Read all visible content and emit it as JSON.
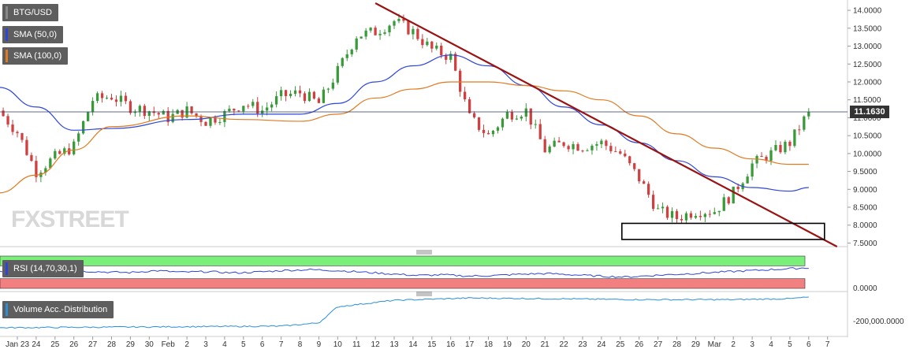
{
  "header": {
    "symbol_label": "BTG/USD",
    "sma50_label": "SMA (50,0)",
    "sma100_label": "SMA (100,0)",
    "rsi_label": "RSI (14,70,30,1)",
    "volume_label": "Volume Acc.-Distribution",
    "watermark": "FXSTREET",
    "last_price": "11.1630"
  },
  "colors": {
    "up": "#3a9a3a",
    "down": "#d04040",
    "sma50": "#2e46d8",
    "sma100": "#e07a20",
    "trendline": "#9a1212",
    "rsi_line": "#2e46d8",
    "overbought": "#7af07a",
    "oversold": "#f28080",
    "volume_line": "#2b8fd8"
  },
  "chart_data": [
    {
      "type": "candlestick",
      "title": "BTG/USD",
      "x_ticks": [
        "Jan 23",
        "24",
        "25",
        "26",
        "27",
        "28",
        "29",
        "30",
        "Feb",
        "2",
        "3",
        "4",
        "5",
        "6",
        "7",
        "8",
        "9",
        "10",
        "11",
        "12",
        "13",
        "14",
        "15",
        "16",
        "17",
        "18",
        "19",
        "20",
        "21",
        "22",
        "23",
        "24",
        "25",
        "26",
        "27",
        "28",
        "29",
        "Mar",
        "2",
        "3",
        "4",
        "5",
        "6",
        "7"
      ],
      "y_ticks": [
        "14.0000",
        "13.5000",
        "13.0000",
        "12.5000",
        "12.0000",
        "11.5000",
        "11.0000",
        "10.5000",
        "10.0000",
        "9.5000",
        "9.0000",
        "8.5000",
        "8.0000",
        "7.5000"
      ],
      "ylim": [
        7.4,
        14.2
      ],
      "last_value": 11.163,
      "candles_start": "Jan 22",
      "candles_per_day": 4,
      "close_waypoints": [
        [
          "Jan 22",
          11.2
        ],
        [
          "Jan 23",
          10.6
        ],
        [
          "Jan 24",
          9.5
        ],
        [
          "Jan 25",
          9.9
        ],
        [
          "Jan 26",
          10.2
        ],
        [
          "Jan 27",
          11.5
        ],
        [
          "Jan 28",
          11.6
        ],
        [
          "Jan 29",
          11.3
        ],
        [
          "Jan 30",
          11.2
        ],
        [
          "Jan 31",
          11.0
        ],
        [
          "Feb 1",
          11.2
        ],
        [
          "Feb 2",
          10.9
        ],
        [
          "Feb 3",
          11.1
        ],
        [
          "Feb 4",
          11.4
        ],
        [
          "Feb 5",
          11.2
        ],
        [
          "Feb 6",
          11.6
        ],
        [
          "Feb 7",
          11.7
        ],
        [
          "Feb 8",
          11.4
        ],
        [
          "Feb 9",
          12.3
        ],
        [
          "Feb 10",
          13.3
        ],
        [
          "Feb 11",
          13.4
        ],
        [
          "Feb 12",
          13.7
        ],
        [
          "Feb 13",
          13.4
        ],
        [
          "Feb 14",
          12.9
        ],
        [
          "Feb 15",
          12.7
        ],
        [
          "Feb 16",
          11.0
        ],
        [
          "Feb 17",
          10.5
        ],
        [
          "Feb 18",
          11.1
        ],
        [
          "Feb 19",
          11.2
        ],
        [
          "Feb 20",
          10.1
        ],
        [
          "Feb 21",
          10.3
        ],
        [
          "Feb 22",
          10.2
        ],
        [
          "Feb 23",
          10.3
        ],
        [
          "Feb 24",
          10.0
        ],
        [
          "Feb 25",
          9.3
        ],
        [
          "Feb 26",
          8.4
        ],
        [
          "Feb 27",
          8.2
        ],
        [
          "Feb 28",
          8.4
        ],
        [
          "Feb 29",
          8.4
        ],
        [
          "Mar 1",
          8.9
        ],
        [
          "Mar 2",
          9.7
        ],
        [
          "Mar 3",
          10.0
        ],
        [
          "Mar 4",
          10.3
        ],
        [
          "Mar 5",
          11.16
        ]
      ],
      "series": [
        {
          "name": "SMA (50,0)",
          "values": [
            [
              "Jan 22",
              11.85
            ],
            [
              "Jan 24",
              11.3
            ],
            [
              "Jan 26",
              10.65
            ],
            [
              "Jan 28",
              10.7
            ],
            [
              "Feb 1",
              10.95
            ],
            [
              "Feb 4",
              11.1
            ],
            [
              "Feb 7",
              11.1
            ],
            [
              "Feb 9",
              11.4
            ],
            [
              "Feb 11",
              12.0
            ],
            [
              "Feb 13",
              12.45
            ],
            [
              "Feb 15",
              12.75
            ],
            [
              "Feb 17",
              12.45
            ],
            [
              "Feb 19",
              11.9
            ],
            [
              "Feb 21",
              11.3
            ],
            [
              "Feb 23",
              10.8
            ],
            [
              "Feb 25",
              10.3
            ],
            [
              "Feb 27",
              9.8
            ],
            [
              "Feb 29",
              9.35
            ],
            [
              "Mar 2",
              9.05
            ],
            [
              "Mar 4",
              8.95
            ],
            [
              "Mar 5",
              9.05
            ]
          ]
        },
        {
          "name": "SMA (100,0)",
          "values": [
            [
              "Jan 22",
              8.9
            ],
            [
              "Jan 24",
              9.4
            ],
            [
              "Jan 26",
              10.1
            ],
            [
              "Jan 28",
              10.75
            ],
            [
              "Feb 1",
              11.05
            ],
            [
              "Feb 4",
              10.95
            ],
            [
              "Feb 7",
              10.9
            ],
            [
              "Feb 9",
              11.1
            ],
            [
              "Feb 11",
              11.55
            ],
            [
              "Feb 13",
              11.8
            ],
            [
              "Feb 15",
              12.0
            ],
            [
              "Feb 17",
              12.0
            ],
            [
              "Feb 19",
              11.9
            ],
            [
              "Feb 21",
              11.75
            ],
            [
              "Feb 23",
              11.5
            ],
            [
              "Feb 25",
              11.05
            ],
            [
              "Feb 27",
              10.55
            ],
            [
              "Feb 29",
              10.15
            ],
            [
              "Mar 2",
              9.85
            ],
            [
              "Mar 4",
              9.7
            ],
            [
              "Mar 5",
              9.7
            ]
          ]
        }
      ],
      "trendline": [
        [
          "Feb 11",
          14.2
        ],
        [
          "Mar 6",
          7.4
        ]
      ],
      "highlight_box": {
        "x_from": "Feb 24",
        "x_to": "Mar 5",
        "y_from": 7.6,
        "y_to": 8.05
      },
      "grid": false
    },
    {
      "type": "line",
      "title": "RSI (14,70,30,1)",
      "overbought_band": [
        70,
        100
      ],
      "oversold_band": [
        0,
        30
      ],
      "values_from": "Jan 22",
      "values": [
        52,
        48,
        50,
        54,
        51,
        49,
        55,
        50,
        52,
        48,
        51,
        56,
        58,
        55,
        50,
        45,
        40,
        42,
        38,
        40,
        44,
        46,
        42,
        38,
        35,
        40,
        44,
        48,
        52,
        56,
        60,
        64
      ]
    },
    {
      "type": "line",
      "title": "Volume Acc.-Distribution",
      "y_ticks": [
        "-200,000.0000"
      ],
      "values_from": "Jan 22",
      "waypoints": [
        [
          "Jan 22",
          0.05
        ],
        [
          "Feb 6",
          0.1
        ],
        [
          "Feb 8",
          0.2
        ],
        [
          "Feb 9",
          0.7
        ],
        [
          "Feb 12",
          0.9
        ],
        [
          "Feb 16",
          0.97
        ],
        [
          "Feb 20",
          0.95
        ],
        [
          "Feb 25",
          0.92
        ],
        [
          "Mar 1",
          0.92
        ],
        [
          "Mar 4",
          0.95
        ],
        [
          "Mar 5",
          1.0
        ]
      ]
    }
  ]
}
